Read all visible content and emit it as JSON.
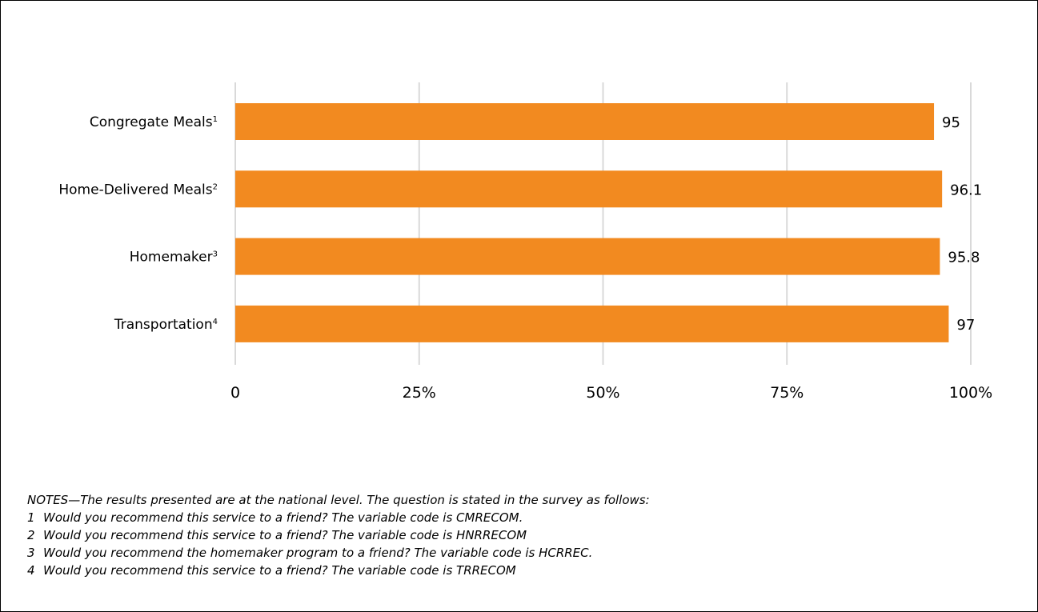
{
  "chart_data": {
    "type": "bar",
    "orientation": "horizontal",
    "categories": [
      {
        "label": "Congregate Meals",
        "footnote": "1"
      },
      {
        "label": "Home-Delivered Meals",
        "footnote": "2"
      },
      {
        "label": "Homemaker",
        "footnote": "3"
      },
      {
        "label": "Transportation",
        "footnote": "4"
      }
    ],
    "values": [
      95,
      96.1,
      95.8,
      97
    ],
    "value_labels": [
      "95",
      "96.1",
      "95.8",
      "97"
    ],
    "xlim": [
      0,
      100
    ],
    "x_ticks": [
      0,
      25,
      50,
      75,
      100
    ],
    "x_tick_labels": [
      "0",
      "25%",
      "50%",
      "75%",
      "100%"
    ],
    "grid": "vertical",
    "legend": "none",
    "bar_color": "#f28a20",
    "grid_color": "#d9d9d9"
  },
  "notes": {
    "intro": "NOTES—The results presented are at the national level. The question is stated in the survey as follows:",
    "items": [
      {
        "num": "1",
        "text": "Would you recommend this service to a friend? The variable code is CMRECOM."
      },
      {
        "num": "2",
        "text": "Would you recommend this service to a friend? The variable code is HNRRECOM"
      },
      {
        "num": "3",
        "text": "Would you recommend the homemaker program to a friend? The variable code is HCRREC."
      },
      {
        "num": "4",
        "text": "Would you recommend this service to a friend? The variable code is TRRECOM"
      }
    ]
  }
}
